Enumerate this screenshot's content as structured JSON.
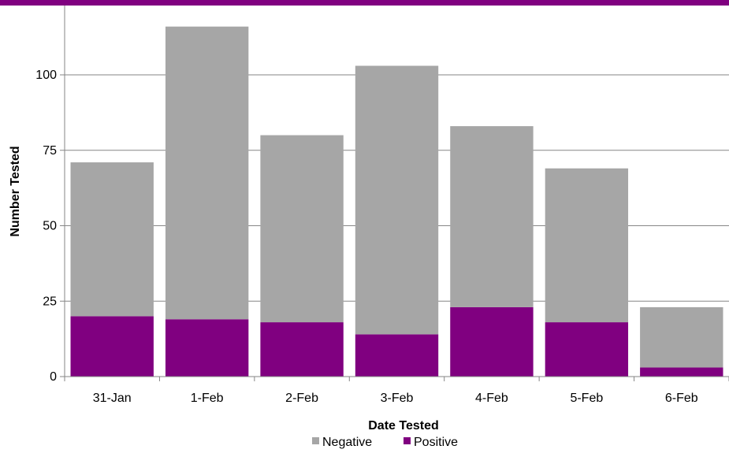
{
  "theme": {
    "accent": "#800080",
    "negative_color": "#A6A6A6",
    "positive_color": "#800080",
    "grid_color": "#868686"
  },
  "chart_data": {
    "type": "bar",
    "stacked": true,
    "categories": [
      "31-Jan",
      "1-Feb",
      "2-Feb",
      "3-Feb",
      "4-Feb",
      "5-Feb",
      "6-Feb"
    ],
    "series": [
      {
        "name": "Positive",
        "values": [
          20,
          19,
          18,
          14,
          23,
          18,
          3
        ],
        "color": "#800080"
      },
      {
        "name": "Negative",
        "values": [
          51,
          97,
          62,
          89,
          60,
          51,
          20
        ],
        "color": "#A6A6A6"
      }
    ],
    "title": "",
    "xlabel": "Date Tested",
    "ylabel": "Number Tested",
    "ylim": [
      0,
      120
    ],
    "yticks": [
      0,
      25,
      50,
      75,
      100
    ],
    "grid": true,
    "legend_position": "bottom",
    "legend_order": [
      "Negative",
      "Positive"
    ]
  }
}
